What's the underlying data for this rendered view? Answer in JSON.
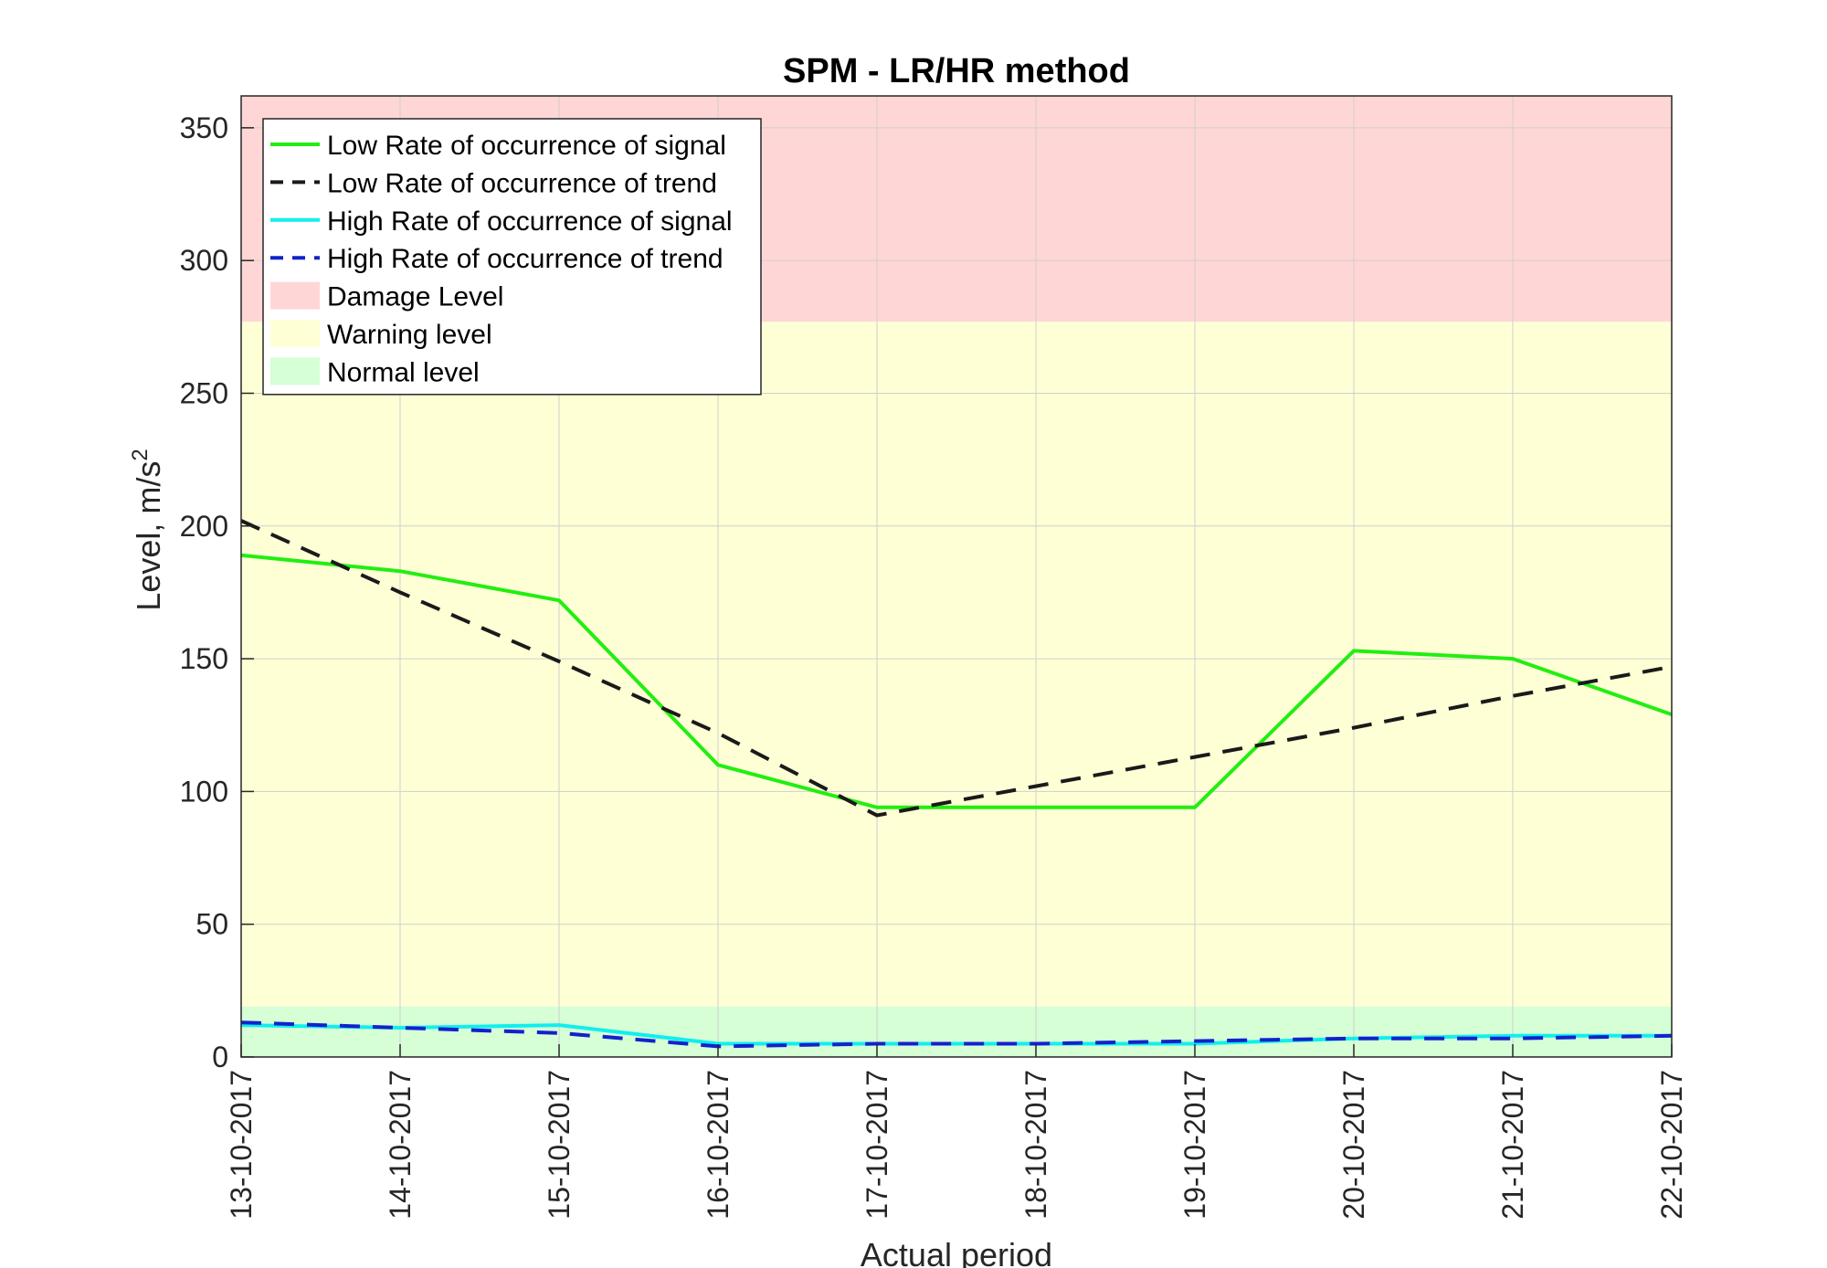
{
  "chart_data": {
    "type": "line",
    "title": "SPM - LR/HR method",
    "xlabel": "Actual period",
    "ylabel_base": "Level, m/s",
    "ylabel_sup": "2",
    "categories": [
      "13-10-2017",
      "14-10-2017",
      "15-10-2017",
      "16-10-2017",
      "17-10-2017",
      "18-10-2017",
      "19-10-2017",
      "20-10-2017",
      "21-10-2017",
      "22-10-2017"
    ],
    "ylim": [
      0,
      362
    ],
    "yticks": [
      0,
      50,
      100,
      150,
      200,
      250,
      300,
      350
    ],
    "grid": true,
    "legend_position": "top-left",
    "series": [
      {
        "name": "Low Rate of occurrence of signal",
        "color": "#22ee11",
        "dash": "solid",
        "values": [
          189,
          183,
          172,
          110,
          94,
          94,
          94,
          153,
          150,
          129
        ]
      },
      {
        "name": "Low Rate of occurrence of trend",
        "color": "#1a1a1a",
        "dash": "dashed",
        "values": [
          202,
          175,
          149,
          122,
          91,
          102,
          113,
          124,
          136,
          147
        ]
      },
      {
        "name": "High Rate of occurrence of signal",
        "color": "#11eeee",
        "dash": "solid",
        "values": [
          12,
          11,
          12,
          5,
          5,
          5,
          5,
          7,
          8,
          8
        ]
      },
      {
        "name": "High Rate of occurrence of trend",
        "color": "#1122cc",
        "dash": "dashed",
        "values": [
          13,
          11,
          9,
          4,
          5,
          5,
          6,
          7,
          7,
          8
        ]
      }
    ],
    "bands": [
      {
        "name": "Damage Level",
        "from": 277,
        "to": 362,
        "color": "#ffd6d6"
      },
      {
        "name": "Warning level",
        "from": 19,
        "to": 277,
        "color": "#ffffd6"
      },
      {
        "name": "Normal level",
        "from": 0,
        "to": 19,
        "color": "#d6ffd6"
      }
    ]
  }
}
